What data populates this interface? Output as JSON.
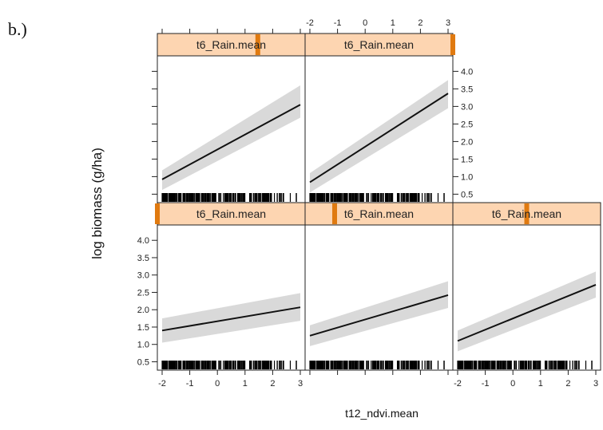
{
  "panel_label": "b.)",
  "chart_data": {
    "type": "line",
    "xlabel": "t12_ndvi.mean",
    "ylabel": "log biomass (g/ha)",
    "xlim": [
      -2,
      3
    ],
    "ylim": [
      0.5,
      4.0
    ],
    "x_ticks": [
      "-2",
      "-1",
      "0",
      "1",
      "2",
      "3"
    ],
    "y_ticks": [
      "0.5",
      "1.0",
      "1.5",
      "2.0",
      "2.5",
      "3.0",
      "3.5",
      "4.0"
    ],
    "grid": false,
    "colors": {
      "strip": "#fdd5b1",
      "strip_marker": "#e07a10",
      "band": "#d9d9d9",
      "line": "#111111",
      "rug": "#000000"
    },
    "panels": [
      {
        "strip_label": "t6_Rain.mean",
        "row": 0,
        "col": 0,
        "rain_level": 0.68,
        "x": [
          -2,
          3
        ],
        "fit": [
          0.92,
          3.05
        ],
        "lower": [
          0.62,
          2.68
        ],
        "upper": [
          1.18,
          3.6
        ]
      },
      {
        "strip_label": "t6_Rain.mean",
        "row": 0,
        "col": 1,
        "rain_level": 1.0,
        "x": [
          -2,
          3
        ],
        "fit": [
          0.84,
          3.37
        ],
        "lower": [
          0.55,
          2.95
        ],
        "upper": [
          1.1,
          3.75
        ]
      },
      {
        "strip_label": "t6_Rain.mean",
        "row": 1,
        "col": 0,
        "rain_level": 0.0,
        "x": [
          -2,
          3
        ],
        "fit": [
          1.4,
          2.07
        ],
        "lower": [
          1.05,
          1.68
        ],
        "upper": [
          1.75,
          2.48
        ]
      },
      {
        "strip_label": "t6_Rain.mean",
        "row": 1,
        "col": 1,
        "rain_level": 0.2,
        "x": [
          -2,
          3
        ],
        "fit": [
          1.25,
          2.42
        ],
        "lower": [
          0.95,
          2.05
        ],
        "upper": [
          1.55,
          2.82
        ]
      },
      {
        "strip_label": "t6_Rain.mean",
        "row": 1,
        "col": 2,
        "rain_level": 0.5,
        "x": [
          -2,
          3
        ],
        "fit": [
          1.1,
          2.72
        ],
        "lower": [
          0.8,
          2.35
        ],
        "upper": [
          1.4,
          3.1
        ]
      }
    ]
  }
}
